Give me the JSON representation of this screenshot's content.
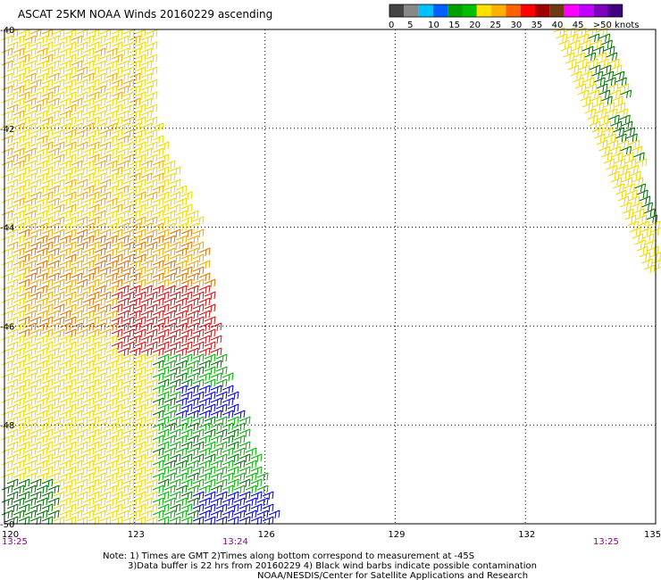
{
  "title": "ASCAT 25KM NOAA Winds 20160229 ascending",
  "legend": {
    "ticks": [
      "0",
      "5",
      "10",
      "15",
      "20",
      "25",
      "30",
      "35",
      "40",
      "45",
      ">50 knots"
    ],
    "colors": [
      "#444444",
      "#888888",
      "#00c0ff",
      "#0060ff",
      "#00a000",
      "#00c000",
      "#ffe000",
      "#ffb000",
      "#ff6000",
      "#ff0000",
      "#a00000",
      "#6e3a14",
      "#ff00ff",
      "#c000ff",
      "#8000c0",
      "#400080"
    ]
  },
  "axes": {
    "lat_labels": [
      "-40",
      "-42",
      "-44",
      "-46",
      "-48",
      "-50"
    ],
    "lon_labels": [
      "120",
      "123",
      "126",
      "129",
      "132",
      "135"
    ]
  },
  "pass_times": [
    "13:25",
    "13:24",
    "13:25"
  ],
  "notes": {
    "line1": "Note: 1) Times are GMT 2)Times along bottom correspond to measurement at -45S",
    "line2": "3)Data buffer is 22 hrs from 20160229 4) Black wind barbs indicate possible contamination",
    "line3": "NOAA/NESDIS/Center for Satellite Applications and Research"
  },
  "barb_colors": {
    "yellow": "#f2d600",
    "gold": "#f0a800",
    "orange": "#e07000",
    "red": "#d01010",
    "green": "#00b000",
    "darkgreen": "#007000",
    "blue": "#0000d0"
  }
}
